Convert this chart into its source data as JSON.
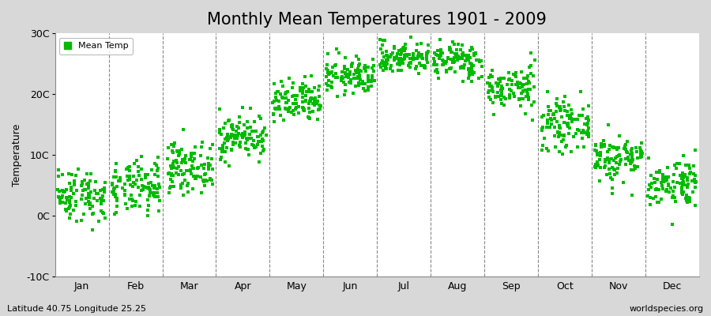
{
  "title": "Monthly Mean Temperatures 1901 - 2009",
  "ylabel": "Temperature",
  "footer_left": "Latitude 40.75 Longitude 25.25",
  "footer_right": "worldspecies.org",
  "legend_label": "Mean Temp",
  "dot_color": "#00bb00",
  "figure_bg_color": "#d8d8d8",
  "plot_bg_color": "#ffffff",
  "ylim": [
    -10,
    30
  ],
  "yticks": [
    -10,
    0,
    10,
    20,
    30
  ],
  "ytick_labels": [
    "-10C",
    "0C",
    "10C",
    "20C",
    "30C"
  ],
  "months": [
    "Jan",
    "Feb",
    "Mar",
    "Apr",
    "May",
    "Jun",
    "Jul",
    "Aug",
    "Sep",
    "Oct",
    "Nov",
    "Dec"
  ],
  "monthly_means": [
    3.5,
    4.5,
    8.0,
    13.0,
    18.5,
    23.0,
    26.0,
    25.5,
    21.0,
    15.0,
    9.5,
    5.5
  ],
  "monthly_stds": [
    2.2,
    2.2,
    2.0,
    1.8,
    1.8,
    1.5,
    1.3,
    1.5,
    1.8,
    2.0,
    2.0,
    2.0
  ],
  "n_years": 109,
  "seed": 42,
  "marker_size": 5,
  "marker_style": "s",
  "title_fontsize": 15,
  "tick_fontsize": 9,
  "ylabel_fontsize": 9,
  "footer_fontsize": 8
}
